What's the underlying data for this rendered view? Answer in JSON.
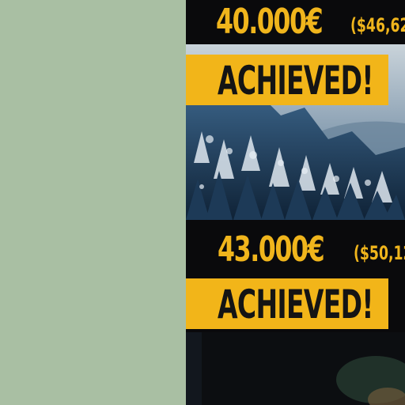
{
  "goals": [
    {
      "amount": "40.000€",
      "usd": "($46,62",
      "status": "ACHIEVED!"
    },
    {
      "amount": "43.000€",
      "usd": "($50,12",
      "status": "ACHIEVED!"
    }
  ],
  "colors": {
    "accent": "#f2b519",
    "background_left": "#a9bfa3",
    "background_right": "#0a0a0c"
  }
}
